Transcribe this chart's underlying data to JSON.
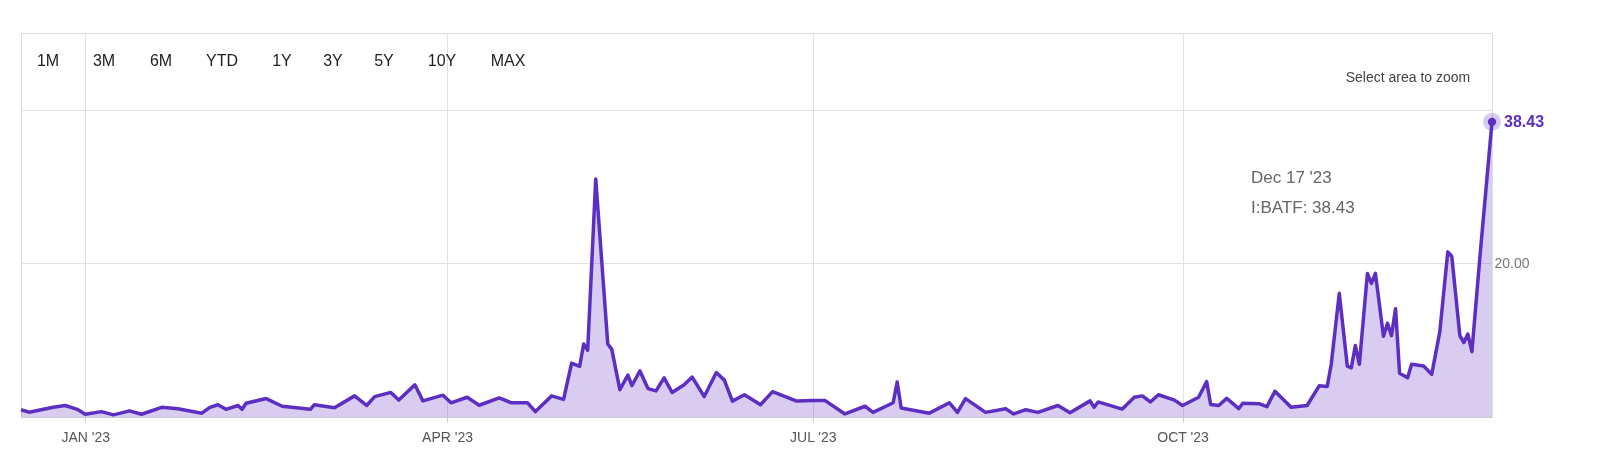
{
  "chart_data": {
    "type": "area",
    "x": [
      "2022-12-16",
      "2022-12-18",
      "2022-12-24",
      "2022-12-27",
      "2022-12-30",
      "2023-01-01",
      "2023-01-05",
      "2023-01-08",
      "2023-01-12",
      "2023-01-15",
      "2023-01-20",
      "2023-01-24",
      "2023-01-30",
      "2023-02-01",
      "2023-02-03",
      "2023-02-05",
      "2023-02-08",
      "2023-02-09",
      "2023-02-10",
      "2023-02-15",
      "2023-02-19",
      "2023-02-26",
      "2023-02-27",
      "2023-03-04",
      "2023-03-09",
      "2023-03-12",
      "2023-03-14",
      "2023-03-18",
      "2023-03-20",
      "2023-03-24",
      "2023-03-26",
      "2023-03-31",
      "2023-04-02",
      "2023-04-06",
      "2023-04-09",
      "2023-04-14",
      "2023-04-17",
      "2023-04-21",
      "2023-04-23",
      "2023-04-27",
      "2023-04-30",
      "2023-05-02",
      "2023-05-04",
      "2023-05-05",
      "2023-05-06",
      "2023-05-08",
      "2023-05-11",
      "2023-05-12",
      "2023-05-14",
      "2023-05-16",
      "2023-05-17",
      "2023-05-19",
      "2023-05-21",
      "2023-05-23",
      "2023-05-25",
      "2023-05-27",
      "2023-05-30",
      "2023-06-01",
      "2023-06-04",
      "2023-06-07",
      "2023-06-09",
      "2023-06-11",
      "2023-06-14",
      "2023-06-18",
      "2023-06-21",
      "2023-06-27",
      "2023-07-01",
      "2023-07-04",
      "2023-07-09",
      "2023-07-14",
      "2023-07-16",
      "2023-07-21",
      "2023-07-22",
      "2023-07-23",
      "2023-07-30",
      "2023-08-04",
      "2023-08-06",
      "2023-08-08",
      "2023-08-13",
      "2023-08-18",
      "2023-08-20",
      "2023-08-23",
      "2023-08-26",
      "2023-08-31",
      "2023-09-03",
      "2023-09-08",
      "2023-09-09",
      "2023-09-10",
      "2023-09-16",
      "2023-09-19",
      "2023-09-21",
      "2023-09-23",
      "2023-09-25",
      "2023-09-29",
      "2023-10-01",
      "2023-10-05",
      "2023-10-07",
      "2023-10-08",
      "2023-10-10",
      "2023-10-12",
      "2023-10-15",
      "2023-10-16",
      "2023-10-20",
      "2023-10-22",
      "2023-10-24",
      "2023-10-28",
      "2023-11-01",
      "2023-11-04",
      "2023-11-06",
      "2023-11-07",
      "2023-11-09",
      "2023-11-11",
      "2023-11-12",
      "2023-11-13",
      "2023-11-14",
      "2023-11-16",
      "2023-11-17",
      "2023-11-18",
      "2023-11-20",
      "2023-11-21",
      "2023-11-22",
      "2023-11-23",
      "2023-11-24",
      "2023-11-26",
      "2023-11-27",
      "2023-11-30",
      "2023-12-02",
      "2023-12-04",
      "2023-12-06",
      "2023-12-07",
      "2023-12-09",
      "2023-12-10",
      "2023-12-11",
      "2023-12-12",
      "2023-12-14",
      "2023-12-17"
    ],
    "series": [
      {
        "color": "#5c2fc2",
        "values": [
          0.95,
          0.63,
          1.26,
          1.5,
          1.0,
          0.36,
          0.7,
          0.27,
          0.8,
          0.36,
          1.26,
          1.08,
          0.5,
          1.26,
          1.6,
          1.0,
          1.5,
          1.0,
          1.8,
          2.4,
          1.4,
          1.0,
          1.6,
          1.2,
          2.75,
          1.5,
          2.66,
          3.2,
          2.2,
          4.2,
          2.1,
          2.84,
          1.85,
          2.57,
          1.53,
          2.5,
          1.85,
          1.85,
          0.7,
          2.75,
          2.3,
          7.0,
          6.6,
          9.5,
          8.7,
          31.0,
          9.5,
          8.8,
          3.56,
          5.45,
          4.1,
          6.0,
          3.7,
          3.4,
          5.1,
          3.2,
          4.2,
          5.2,
          2.66,
          5.8,
          4.8,
          2.07,
          2.9,
          1.6,
          3.3,
          2.07,
          2.16,
          2.16,
          0.4,
          1.4,
          0.6,
          1.85,
          4.55,
          1.17,
          0.5,
          1.85,
          0.6,
          2.4,
          0.6,
          1.08,
          0.4,
          0.95,
          0.6,
          1.5,
          0.56,
          2.1,
          1.26,
          1.96,
          1.03,
          2.57,
          2.75,
          1.96,
          2.9,
          2.2,
          1.5,
          2.57,
          4.6,
          1.63,
          1.5,
          2.43,
          1.1,
          1.8,
          1.73,
          1.35,
          3.36,
          1.26,
          1.5,
          4.06,
          3.97,
          6.86,
          16.1,
          6.63,
          6.4,
          9.3,
          6.86,
          18.7,
          17.4,
          18.7,
          10.5,
          12.2,
          10.6,
          14.1,
          5.7,
          5.1,
          6.86,
          6.63,
          5.55,
          11.06,
          21.5,
          20.9,
          10.6,
          9.7,
          10.8,
          8.5,
          20.9,
          38.43
        ],
        "value_labels": [
          null,
          null,
          null,
          null,
          null,
          null,
          null,
          null,
          null,
          null,
          null,
          null,
          null,
          null,
          null,
          null,
          null,
          null,
          null,
          null,
          null,
          null,
          null,
          null,
          null,
          null,
          null,
          null,
          null,
          null,
          null,
          null,
          null,
          null,
          null,
          null,
          null,
          null,
          null,
          null,
          null,
          null,
          null,
          null,
          null,
          null,
          null,
          null,
          null,
          null,
          null,
          null,
          null,
          null,
          null,
          null,
          null,
          null,
          null,
          null,
          null,
          null,
          null,
          null,
          null,
          null,
          null,
          null,
          null,
          null,
          null,
          null,
          null,
          null,
          null,
          null,
          null,
          null,
          null,
          null,
          null,
          null,
          null,
          null,
          null,
          null,
          null,
          null,
          null,
          null,
          null,
          null,
          null,
          null,
          null,
          null,
          null,
          null,
          null,
          null,
          null,
          null,
          null,
          null,
          null,
          null,
          null,
          null,
          null,
          null,
          null,
          null,
          null,
          null,
          null,
          null,
          null,
          null,
          null,
          null,
          null,
          null,
          null,
          null,
          null,
          null,
          null,
          null,
          null,
          null,
          null,
          null,
          null,
          null,
          null,
          "38.43"
        ]
      }
    ],
    "xlim": [
      "2022-12-16",
      "2023-12-17"
    ],
    "xticks": [
      {
        "value": "2023-01-01",
        "label": "JAN '23"
      },
      {
        "value": "2023-04-01",
        "label": "APR '23"
      },
      {
        "value": "2023-07-01",
        "label": "JUL '23"
      },
      {
        "value": "2023-10-01",
        "label": "OCT '23"
      }
    ],
    "ylim": [
      0,
      50
    ],
    "yticks": [
      {
        "value": 20,
        "label": "20.00"
      },
      {
        "value": 40,
        "label": null
      }
    ],
    "grid": true,
    "marker": "none",
    "line_style": "solid",
    "annotations": [
      "1M",
      "3M",
      "6M",
      "YTD",
      "1Y",
      "3Y",
      "5Y",
      "10Y",
      "MAX",
      "Select area to zoom",
      "Dec 17 '23",
      "I:BATF: 38.43"
    ]
  }
}
